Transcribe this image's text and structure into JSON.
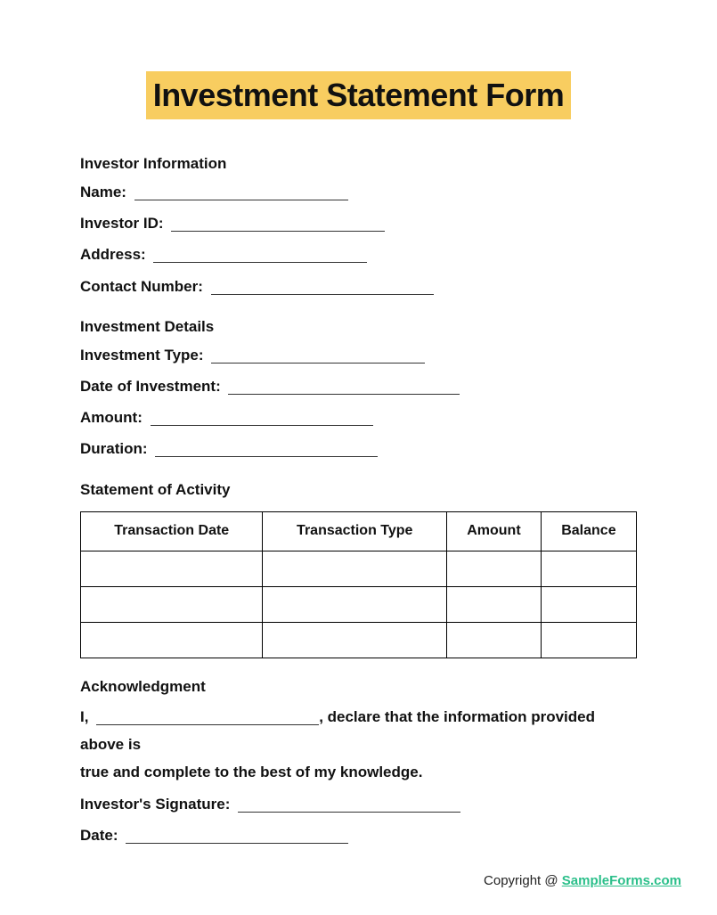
{
  "title": "Investment Statement Form",
  "investor_info": {
    "heading": "Investor Information",
    "name_label": "Name:",
    "id_label": "Investor ID:",
    "address_label": "Address:",
    "contact_label": "Contact Number:"
  },
  "investment_details": {
    "heading": "Investment Details",
    "type_label": "Investment Type:",
    "date_label": "Date of Investment:",
    "amount_label": "Amount:",
    "duration_label": "Duration:"
  },
  "activity": {
    "heading": "Statement of Activity",
    "columns": [
      "Transaction Date",
      "Transaction Type",
      "Amount",
      "Balance"
    ],
    "row_count": 3
  },
  "acknowledgment": {
    "heading": "Acknowledgment",
    "prefix": "I,",
    "suffix1": ", declare that the information provided above is",
    "suffix2": "true and complete to the best of my knowledge.",
    "signature_label": "Investor's Signature:",
    "date_label": "Date:"
  },
  "footer": {
    "copyright": "Copyright @ ",
    "link_text": "SampleForms.com"
  },
  "style": {
    "title_bg": "#f8cd60",
    "title_fontsize": 36,
    "body_fontsize": 17,
    "text_color": "#111111",
    "link_color": "#2bbf8a",
    "border_color": "#000000",
    "blank_widths": {
      "name": 240,
      "investor_id": 240,
      "address": 240,
      "contact": 250,
      "inv_type": 240,
      "inv_date": 260,
      "amount": 250,
      "duration": 250,
      "ack_name": 250,
      "signature": 250,
      "ack_date": 250
    }
  }
}
